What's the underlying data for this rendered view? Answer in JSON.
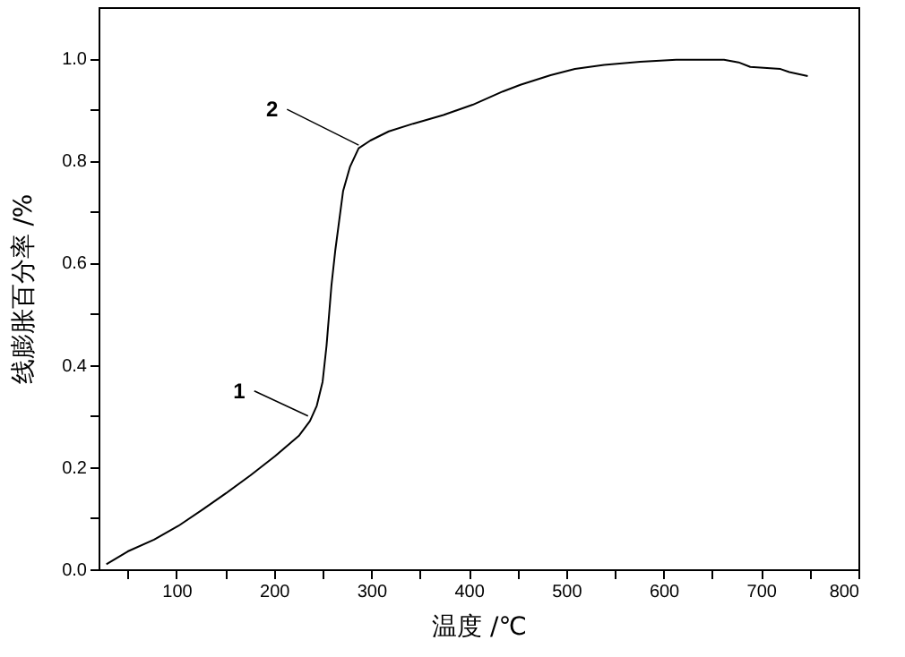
{
  "chart_data": {
    "type": "line",
    "xlabel": "温度 /℃",
    "ylabel": "线膨胀百分率 /%",
    "xlim": [
      20,
      800
    ],
    "ylim": [
      0,
      1.1
    ],
    "xticks": [
      {
        "value": 50,
        "label": null
      },
      100,
      {
        "value": 150,
        "label": null
      },
      200,
      {
        "value": 250,
        "label": null
      },
      300,
      {
        "value": 350,
        "label": null
      },
      400,
      {
        "value": 450,
        "label": null
      },
      500,
      {
        "value": 550,
        "label": null
      },
      600,
      {
        "value": 650,
        "label": null
      },
      700,
      {
        "value": 750,
        "label": null
      },
      800
    ],
    "yticks": [
      {
        "value": 0,
        "label": "0.0"
      },
      {
        "value": 0.1,
        "label": null
      },
      {
        "value": 0.2,
        "label": "0.2"
      },
      {
        "value": 0.3,
        "label": null
      },
      {
        "value": 0.4,
        "label": "0.4"
      },
      {
        "value": 0.5,
        "label": null
      },
      {
        "value": 0.6,
        "label": "0.6"
      },
      {
        "value": 0.7,
        "label": null
      },
      {
        "value": 0.8,
        "label": "0.8"
      },
      {
        "value": 0.9,
        "label": null
      },
      {
        "value": 1,
        "label": "1.0"
      }
    ],
    "grid": false,
    "marker": "none",
    "line_style": "solid",
    "x": [
      28,
      50,
      77,
      102,
      127,
      151,
      176,
      201,
      226,
      237,
      244,
      250,
      254,
      259,
      263,
      267,
      271,
      278,
      287,
      299,
      318,
      343,
      374,
      404,
      435,
      453,
      484,
      509,
      539,
      576,
      613,
      662,
      677,
      689,
      720,
      729,
      748
    ],
    "series": [
      {
        "color": "#000000",
        "values": [
          0.01,
          0.035,
          0.058,
          0.085,
          0.117,
          0.149,
          0.184,
          0.221,
          0.262,
          0.29,
          0.32,
          0.367,
          0.437,
          0.554,
          0.624,
          0.682,
          0.74,
          0.787,
          0.824,
          0.839,
          0.857,
          0.872,
          0.889,
          0.909,
          0.935,
          0.948,
          0.967,
          0.979,
          0.987,
          0.993,
          0.997,
          0.997,
          0.992,
          0.983,
          0.979,
          0.973,
          0.965
        ]
      }
    ],
    "annotations": [
      {
        "text": "1",
        "x": 235,
        "y": 0.3
      },
      {
        "text": "2",
        "x": 287,
        "y": 0.83
      }
    ]
  }
}
